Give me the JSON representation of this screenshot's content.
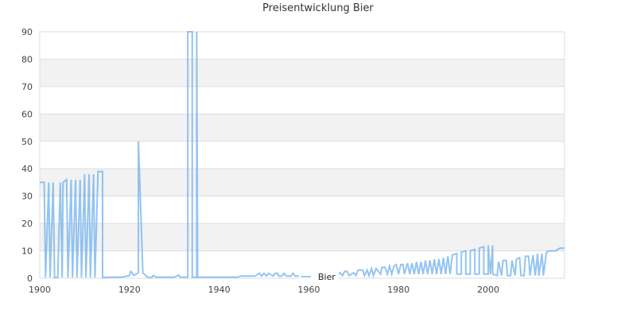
{
  "chart_data": {
    "type": "line",
    "title": "Preisentwicklung Bier",
    "xlabel": "",
    "ylabel": "",
    "xlim": [
      1900,
      2017
    ],
    "ylim": [
      0,
      90
    ],
    "x_ticks": [
      "1900",
      "1920",
      "1940",
      "1960",
      "1980",
      "2000"
    ],
    "y_ticks": [
      "0",
      "10",
      "20",
      "30",
      "40",
      "50",
      "60",
      "70",
      "80",
      "90"
    ],
    "grid": true,
    "legend_position": "bottom-center",
    "series": [
      {
        "name": "Bier",
        "color": "#6fb0ee",
        "points": [
          [
            1900,
            35
          ],
          [
            1901,
            35
          ],
          [
            1901.3,
            0.3
          ],
          [
            1902,
            35
          ],
          [
            1902.3,
            0.3
          ],
          [
            1903,
            35
          ],
          [
            1903.3,
            0.3
          ],
          [
            1904,
            0.3
          ],
          [
            1904.6,
            35
          ],
          [
            1905,
            0.3
          ],
          [
            1905.2,
            35
          ],
          [
            1906,
            36
          ],
          [
            1906.3,
            0.3
          ],
          [
            1907,
            36
          ],
          [
            1907.3,
            0.3
          ],
          [
            1908,
            36
          ],
          [
            1908.3,
            0.3
          ],
          [
            1909,
            36
          ],
          [
            1909.3,
            0.3
          ],
          [
            1910,
            38
          ],
          [
            1910.3,
            0.3
          ],
          [
            1911,
            38
          ],
          [
            1911.3,
            0.3
          ],
          [
            1912,
            38
          ],
          [
            1912.3,
            0.3
          ],
          [
            1913,
            39
          ],
          [
            1914,
            39
          ],
          [
            1914,
            0.3
          ],
          [
            1916,
            0.4
          ],
          [
            1918,
            0.4
          ],
          [
            1919,
            0.6
          ],
          [
            1920,
            1
          ],
          [
            1920.3,
            2.5
          ],
          [
            1921,
            1
          ],
          [
            1922,
            2
          ],
          [
            1922,
            50
          ],
          [
            1923,
            2
          ],
          [
            1924,
            0.4
          ],
          [
            1925,
            0.3
          ],
          [
            1925.3,
            1
          ],
          [
            1926,
            0.4
          ],
          [
            1928,
            0.4
          ],
          [
            1930,
            0.4
          ],
          [
            1931,
            1.2
          ],
          [
            1931.3,
            0.4
          ],
          [
            1933,
            0.4
          ],
          [
            1933,
            90
          ],
          [
            1934,
            90
          ],
          [
            1934,
            0.4
          ],
          [
            1935,
            0.3
          ],
          [
            1935,
            90
          ],
          [
            1935.2,
            0.4
          ],
          [
            1940,
            0.4
          ],
          [
            1944,
            0.4
          ],
          [
            1945,
            0.8
          ],
          [
            1948,
            0.8
          ],
          [
            1949,
            1.8
          ],
          [
            1949.5,
            0.8
          ],
          [
            1950,
            1.8
          ],
          [
            1950.5,
            0.8
          ],
          [
            1951,
            1.8
          ],
          [
            1952,
            0.8
          ],
          [
            1952.5,
            1.8
          ],
          [
            1953,
            1.8
          ],
          [
            1953.3,
            0.8
          ],
          [
            1954,
            0.8
          ],
          [
            1954.5,
            1.8
          ],
          [
            1955,
            0.8
          ],
          [
            1956,
            0.8
          ],
          [
            1956.5,
            1.8
          ],
          [
            1957,
            0.8
          ],
          [
            1962,
            0.8
          ],
          [
            1964,
            0.8
          ],
          [
            1966,
            0.8
          ],
          [
            1967,
            2
          ],
          [
            1967.5,
            1
          ],
          [
            1968,
            2.5
          ],
          [
            1968.5,
            2.5
          ],
          [
            1969,
            1
          ],
          [
            1970,
            2
          ],
          [
            1970.5,
            1
          ],
          [
            1971,
            3
          ],
          [
            1972,
            3
          ],
          [
            1972.4,
            1
          ],
          [
            1973,
            3
          ],
          [
            1973.4,
            1
          ],
          [
            1974,
            3.5
          ],
          [
            1974.4,
            1
          ],
          [
            1975,
            3.5
          ],
          [
            1976,
            1.5
          ],
          [
            1976.3,
            4
          ],
          [
            1977,
            4
          ],
          [
            1977.5,
            1.5
          ],
          [
            1978,
            4.5
          ],
          [
            1978.5,
            1.5
          ],
          [
            1979,
            4.5
          ],
          [
            1979.5,
            5
          ],
          [
            1980,
            1.5
          ],
          [
            1980.5,
            5
          ],
          [
            1981,
            5
          ],
          [
            1981.3,
            1.5
          ],
          [
            1982,
            5.5
          ],
          [
            1982.5,
            1.5
          ],
          [
            1983,
            5.5
          ],
          [
            1983.5,
            1.5
          ],
          [
            1984,
            6
          ],
          [
            1984.5,
            1.5
          ],
          [
            1985,
            6
          ],
          [
            1985.5,
            1.5
          ],
          [
            1986,
            6.5
          ],
          [
            1986.5,
            1.5
          ],
          [
            1987,
            6.5
          ],
          [
            1987.5,
            1.5
          ],
          [
            1988,
            7
          ],
          [
            1988.5,
            1.5
          ],
          [
            1989,
            7
          ],
          [
            1989.5,
            1.5
          ],
          [
            1990,
            7.5
          ],
          [
            1990.5,
            1.5
          ],
          [
            1991,
            8
          ],
          [
            1991.5,
            1.5
          ],
          [
            1992,
            8.5
          ],
          [
            1993,
            9
          ],
          [
            1993,
            1.5
          ],
          [
            1994,
            1.5
          ],
          [
            1994,
            9.5
          ],
          [
            1995,
            10
          ],
          [
            1995,
            1.5
          ],
          [
            1996,
            1.5
          ],
          [
            1996,
            10
          ],
          [
            1997,
            10.5
          ],
          [
            1997,
            1.5
          ],
          [
            1998,
            1.5
          ],
          [
            1998,
            11
          ],
          [
            1999,
            11.5
          ],
          [
            1999,
            1.5
          ],
          [
            2000,
            1.5
          ],
          [
            2000,
            12
          ],
          [
            2000.5,
            1.5
          ],
          [
            2001,
            12
          ],
          [
            2001,
            1.5
          ],
          [
            2002,
            1
          ],
          [
            2002.3,
            6
          ],
          [
            2003,
            1
          ],
          [
            2003.3,
            6.5
          ],
          [
            2004,
            6.5
          ],
          [
            2004.3,
            1
          ],
          [
            2005,
            1
          ],
          [
            2005.3,
            6.5
          ],
          [
            2006,
            1
          ],
          [
            2006.3,
            7
          ],
          [
            2007,
            7.5
          ],
          [
            2007.3,
            1
          ],
          [
            2008,
            1
          ],
          [
            2008.3,
            8
          ],
          [
            2009,
            8
          ],
          [
            2009.3,
            1
          ],
          [
            2010,
            8.5
          ],
          [
            2010.5,
            1
          ],
          [
            2011,
            9
          ],
          [
            2011.3,
            1
          ],
          [
            2012,
            9
          ],
          [
            2012.3,
            1
          ],
          [
            2013,
            9.5
          ],
          [
            2013.5,
            10
          ],
          [
            2014,
            10
          ],
          [
            2015,
            10
          ],
          [
            2016,
            11
          ],
          [
            2017,
            11
          ]
        ]
      }
    ]
  },
  "legend": {
    "label": "Bier"
  }
}
